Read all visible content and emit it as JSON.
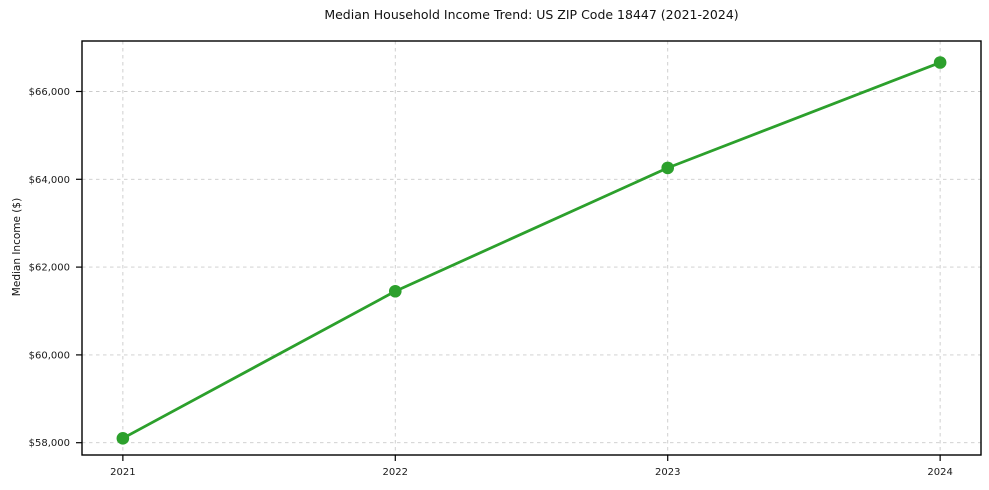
{
  "chart_data": {
    "type": "line",
    "title": "Median Household Income Trend: US ZIP Code 18447 (2021-2024)",
    "xlabel": "",
    "ylabel": "Median Income ($)",
    "x": [
      2021,
      2022,
      2023,
      2024
    ],
    "x_tick_labels": [
      "2021",
      "2022",
      "2023",
      "2024"
    ],
    "series": [
      {
        "name": "Median Household Income",
        "values": [
          58100,
          61450,
          64260,
          66660
        ],
        "color": "#2ca02c",
        "marker": "circle"
      }
    ],
    "y_ticks": [
      58000,
      60000,
      62000,
      64000,
      66000
    ],
    "y_tick_labels": [
      "$58,000",
      "$60,000",
      "$62,000",
      "$64,000",
      "$66,000"
    ],
    "xlim": [
      2020.85,
      2024.15
    ],
    "ylim": [
      57720,
      67150
    ],
    "grid": true,
    "grid_style": "dashed",
    "legend_position": "none",
    "colors": {
      "line": "#2ca02c",
      "grid": "#cbcbcb",
      "spine": "#000000",
      "text": "#1a1a1a",
      "background": "#ffffff"
    }
  }
}
